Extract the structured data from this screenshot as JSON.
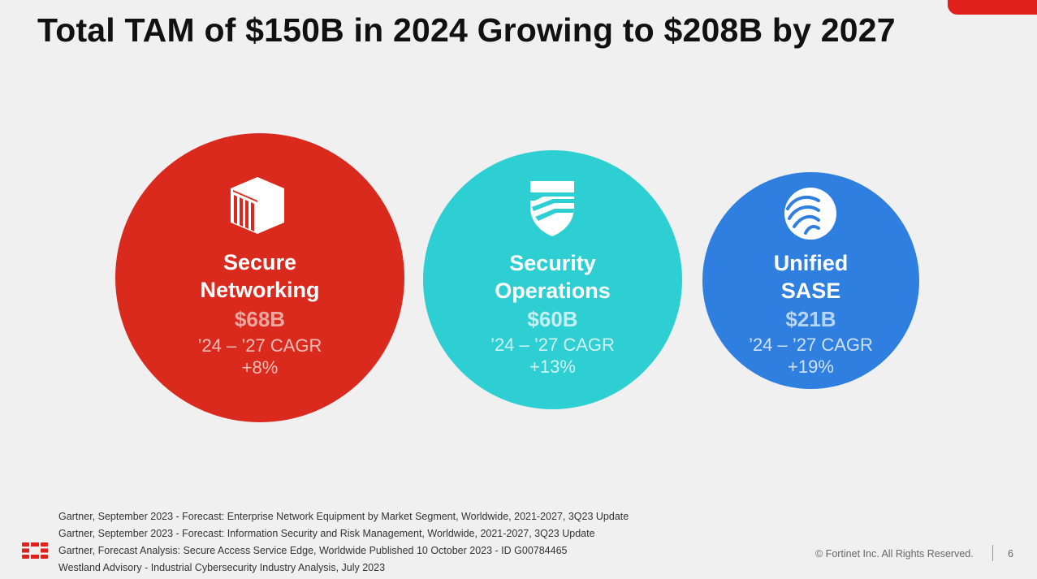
{
  "title": "Total TAM of $150B in 2024 Growing to $208B by 2027",
  "segments": [
    {
      "name": "Secure\nNetworking",
      "value": "$68B",
      "cagr_label": "’24 – ’27 CAGR",
      "cagr": "+8%",
      "color": "#da2a1e",
      "icon": "network-firewall-icon"
    },
    {
      "name": "Security\nOperations",
      "value": "$60B",
      "cagr_label": "’24 – ’27 CAGR",
      "cagr": "+13%",
      "color": "#2ecfd3",
      "icon": "shield-icon"
    },
    {
      "name": "Unified\nSASE",
      "value": "$21B",
      "cagr_label": "’24 – ’27 CAGR",
      "cagr": "+19%",
      "color": "#2f7fe1",
      "icon": "sase-cloud-icon"
    }
  ],
  "sources": [
    "Gartner, September 2023 - Forecast: Enterprise Network Equipment by Market Segment, Worldwide, 2021-2027, 3Q23 Update",
    "Gartner, September 2023 - Forecast: Information Security and Risk Management, Worldwide, 2021-2027, 3Q23 Update",
    "Gartner, Forecast Analysis: Secure Access Service Edge, Worldwide Published 10 October 2023 - ID G00784465",
    "Westland Advisory - Industrial Cybersecurity Industry Analysis, July 2023"
  ],
  "footer": {
    "copyright": "© Fortinet Inc. All Rights Reserved.",
    "page_number": "6"
  },
  "brand_color": "#e0201b"
}
